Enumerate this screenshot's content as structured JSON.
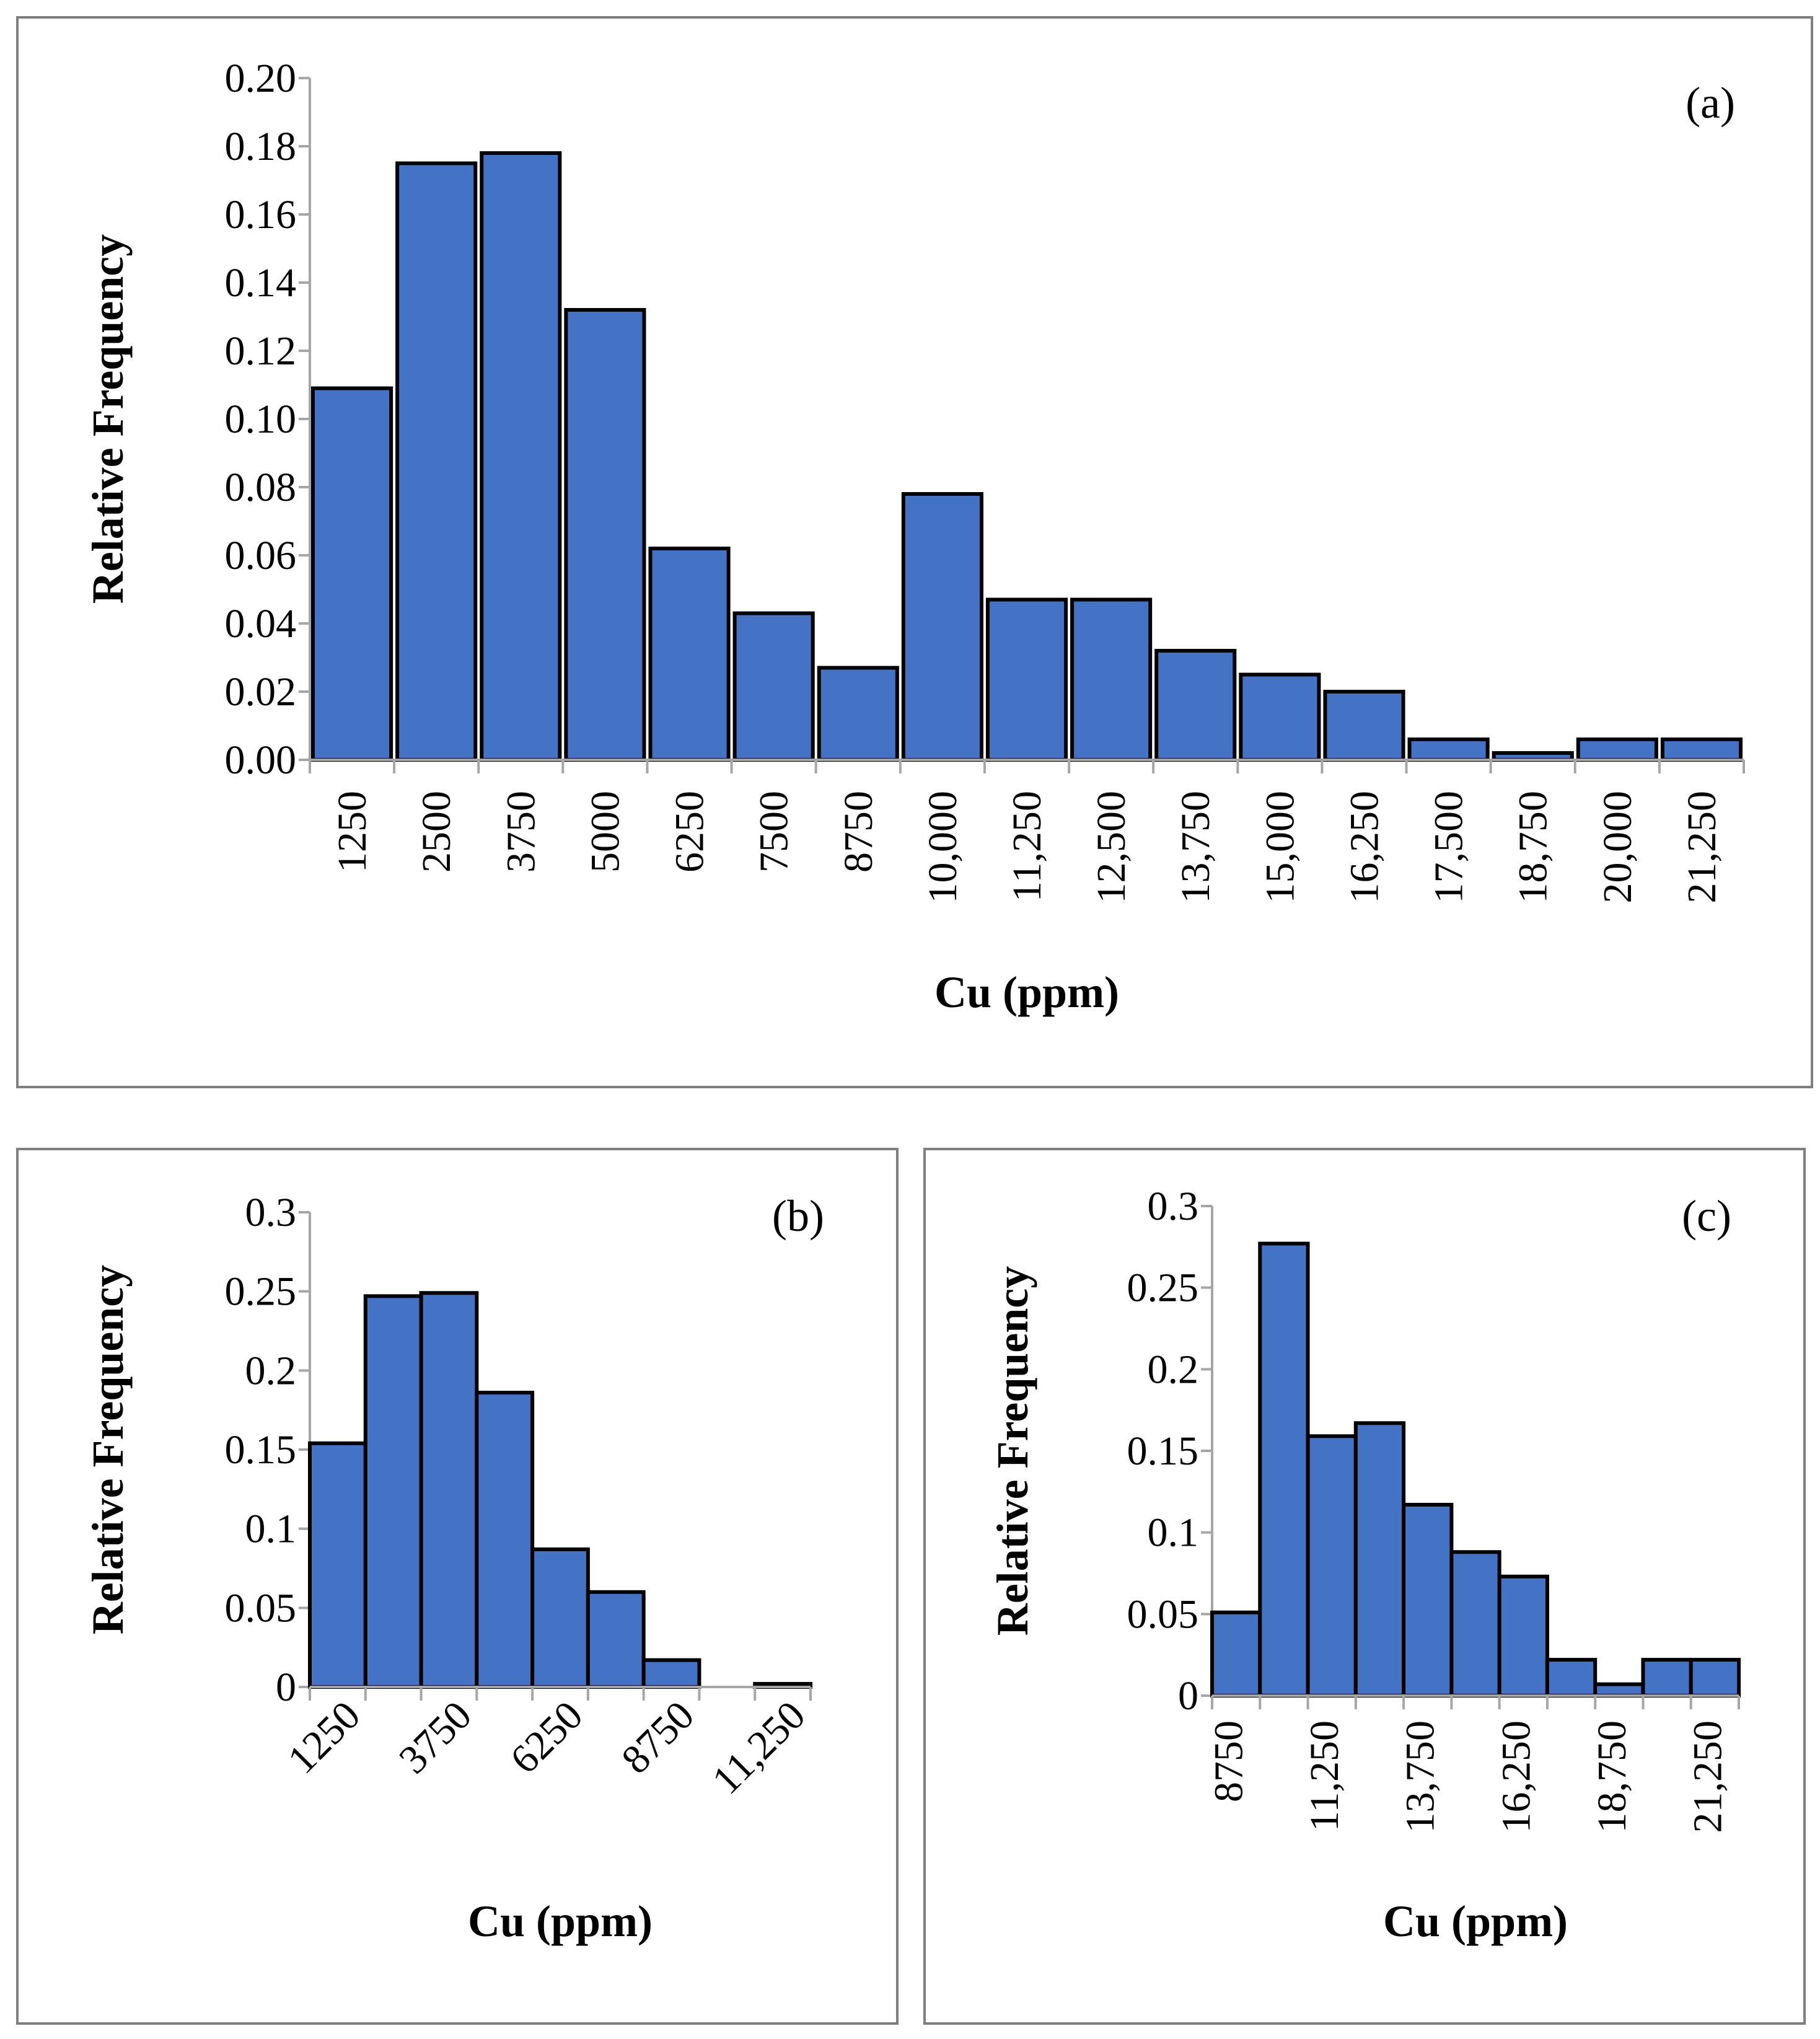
{
  "chart_data": [
    {
      "id": "a",
      "type": "bar",
      "panel_label": "(a)",
      "xlabel": "Cu (ppm)",
      "ylabel": "Relative Frequency",
      "ylim": [
        0,
        0.2
      ],
      "yticks": [
        "0.00",
        "0.02",
        "0.04",
        "0.06",
        "0.08",
        "0.10",
        "0.12",
        "0.14",
        "0.16",
        "0.18",
        "0.20"
      ],
      "categories": [
        "1250",
        "2500",
        "3750",
        "5000",
        "6250",
        "7500",
        "8750",
        "10,000",
        "11,250",
        "12,500",
        "13,750",
        "15,000",
        "16,250",
        "17,500",
        "18,750",
        "20,000",
        "21,250"
      ],
      "values": [
        0.109,
        0.175,
        0.178,
        0.132,
        0.062,
        0.043,
        0.027,
        0.078,
        0.047,
        0.047,
        0.032,
        0.025,
        0.02,
        0.006,
        0.002,
        0.006,
        0.006
      ],
      "bar_color": "#4472c4"
    },
    {
      "id": "b",
      "type": "bar",
      "panel_label": "(b)",
      "xlabel": "Cu (ppm)",
      "ylabel": "Relative Frequency",
      "ylim": [
        0,
        0.3
      ],
      "yticks": [
        "0",
        "0.05",
        "0.1",
        "0.15",
        "0.2",
        "0.25",
        "0.3"
      ],
      "tick_labels": [
        "1250",
        "3750",
        "6250",
        "8750",
        "11,250"
      ],
      "values": [
        0.154,
        0.247,
        0.249,
        0.186,
        0.087,
        0.06,
        0.017,
        0.0,
        0.002
      ],
      "bar_color": "#4472c4"
    },
    {
      "id": "c",
      "type": "bar",
      "panel_label": "(c)",
      "xlabel": "Cu (ppm)",
      "ylabel": "Relative Frequency",
      "ylim": [
        0,
        0.3
      ],
      "yticks": [
        "0",
        "0.05",
        "0.1",
        "0.15",
        "0.2",
        "0.25",
        "0.3"
      ],
      "tick_labels": [
        "8750",
        "11,250",
        "13,750",
        "16,250",
        "18,750",
        "21,250"
      ],
      "values": [
        0.051,
        0.277,
        0.159,
        0.167,
        0.117,
        0.088,
        0.073,
        0.022,
        0.007,
        0.022,
        0.022
      ],
      "bar_color": "#4472c4"
    }
  ]
}
